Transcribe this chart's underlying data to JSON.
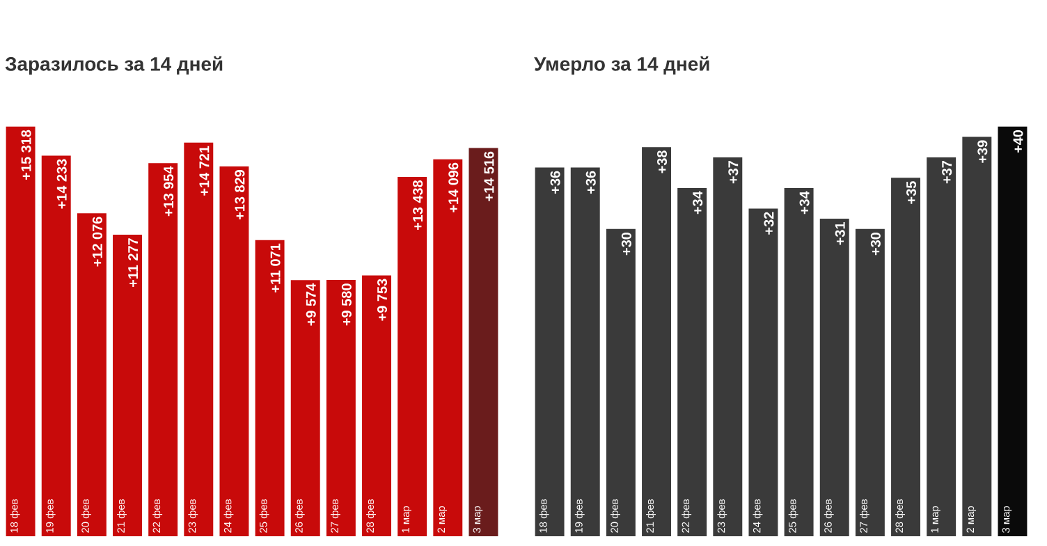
{
  "chart_data": [
    {
      "type": "bar",
      "title": "Заразилось за 14 дней",
      "categories": [
        "18 фев",
        "19 фев",
        "20 фев",
        "21 фев",
        "22 фев",
        "23 фев",
        "24 фев",
        "25 фев",
        "26 фев",
        "27 фев",
        "28 фев",
        "1 мар",
        "2 мар",
        "3 мар"
      ],
      "values": [
        15318,
        14233,
        12076,
        11277,
        13954,
        14721,
        13829,
        11071,
        9574,
        9580,
        9753,
        13438,
        14096,
        14516
      ],
      "value_labels": [
        "+15 318",
        "+14 233",
        "+12 076",
        "+11 277",
        "+13 954",
        "+14 721",
        "+13 829",
        "+11 071",
        "+9 574",
        "+9 580",
        "+9 753",
        "+13 438",
        "+14 096",
        "+14 516"
      ],
      "colors": [
        "#c80a0a",
        "#c80a0a",
        "#c80a0a",
        "#c80a0a",
        "#c80a0a",
        "#c80a0a",
        "#c80a0a",
        "#c80a0a",
        "#c80a0a",
        "#c80a0a",
        "#c80a0a",
        "#c80a0a",
        "#c80a0a",
        "#6a1c1c"
      ]
    },
    {
      "type": "bar",
      "title": "Умерло за 14 дней",
      "categories": [
        "18 фев",
        "19 фев",
        "20 фев",
        "21 фев",
        "22 фев",
        "23 фев",
        "24 фев",
        "25 фев",
        "26 фев",
        "27 фев",
        "28 фев",
        "1 мар",
        "2 мар",
        "3 мар"
      ],
      "values": [
        36,
        36,
        30,
        38,
        34,
        37,
        32,
        34,
        31,
        30,
        35,
        37,
        39,
        40
      ],
      "value_labels": [
        "+36",
        "+36",
        "+30",
        "+38",
        "+34",
        "+37",
        "+32",
        "+34",
        "+31",
        "+30",
        "+35",
        "+37",
        "+39",
        "+40"
      ],
      "colors": [
        "#3a3a3a",
        "#3a3a3a",
        "#3a3a3a",
        "#3a3a3a",
        "#3a3a3a",
        "#3a3a3a",
        "#3a3a3a",
        "#3a3a3a",
        "#3a3a3a",
        "#3a3a3a",
        "#3a3a3a",
        "#3a3a3a",
        "#3a3a3a",
        "#0a0a0a"
      ]
    }
  ]
}
